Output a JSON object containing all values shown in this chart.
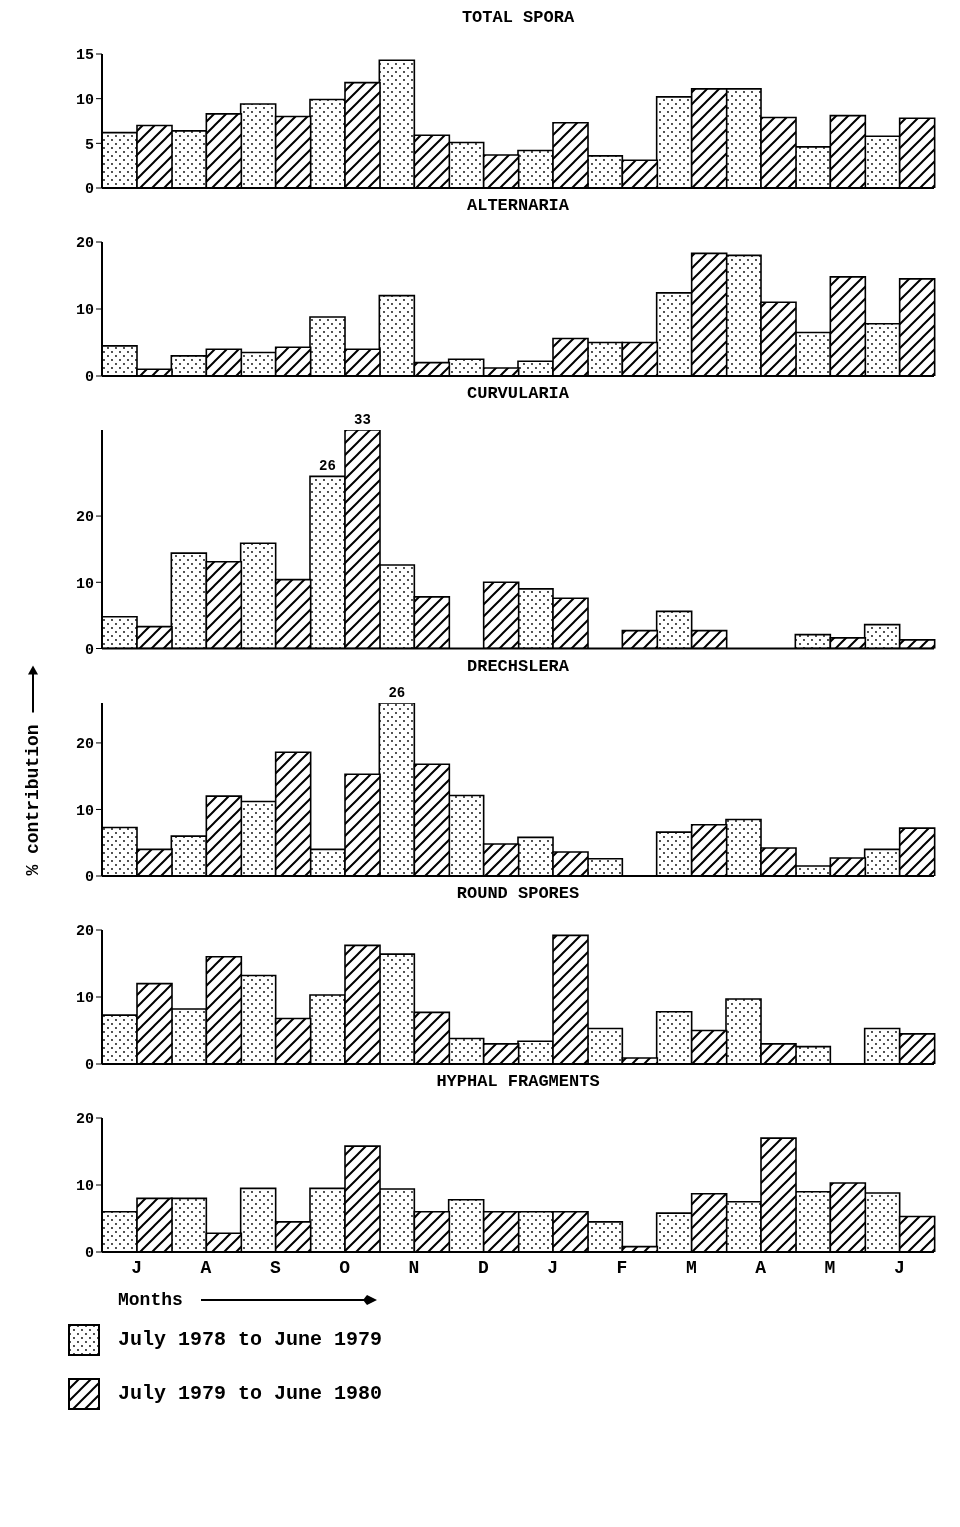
{
  "chart_data": [
    {
      "type": "bar",
      "title": "TOTAL SPORA",
      "categories": [
        null,
        null,
        null,
        null,
        null,
        null,
        null,
        null,
        null,
        null,
        null,
        null
      ],
      "ylim": [
        0,
        15
      ],
      "yticks": [
        0,
        5,
        10,
        15
      ],
      "tick_labels": "y",
      "series": [
        {
          "color": "#000000",
          "values": [
            6.2,
            6.4,
            9.4,
            9.9,
            14.3,
            5.1,
            4.2,
            3.6,
            10.2,
            11.1,
            4.6,
            5.8
          ]
        },
        {
          "color": "#000000",
          "values": [
            7.0,
            8.3,
            8.0,
            11.8,
            5.9,
            3.7,
            7.3,
            3.1,
            11.1,
            7.9,
            8.1,
            7.8
          ]
        }
      ]
    },
    {
      "type": "bar",
      "title": "ALTERNARIA",
      "categories": [
        null,
        null,
        null,
        null,
        null,
        null,
        null,
        null,
        null,
        null,
        null,
        null
      ],
      "ylim": [
        0,
        20
      ],
      "yticks": [
        0,
        10,
        20
      ],
      "tick_labels": "y",
      "series": [
        {
          "color": "#000000",
          "values": [
            4.5,
            3,
            3.5,
            8.8,
            12,
            2.5,
            2.2,
            5,
            12.4,
            18,
            6.5,
            7.8
          ]
        },
        {
          "color": "#000000",
          "values": [
            1,
            4,
            4.3,
            4,
            2,
            1.2,
            5.6,
            5,
            18.3,
            11,
            14.8,
            14.5
          ]
        }
      ]
    },
    {
      "type": "bar",
      "title": "CURVULARIA",
      "categories": [
        null,
        null,
        null,
        null,
        null,
        null,
        null,
        null,
        null,
        null,
        null,
        null
      ],
      "ylim": [
        0,
        33
      ],
      "yticks": [
        0,
        10,
        20
      ],
      "tick_labels": "y",
      "series": [
        {
          "color": "#000000",
          "values": [
            4.8,
            14.4,
            15.9,
            26,
            12.6,
            null,
            9,
            null,
            5.6,
            null,
            2.1,
            3.6
          ],
          "value_labels": [
            null,
            null,
            null,
            "26",
            null,
            null,
            null,
            null,
            null,
            null,
            null,
            null
          ]
        },
        {
          "color": "#000000",
          "values": [
            3.3,
            13.1,
            10.4,
            33,
            7.8,
            10,
            7.6,
            2.7,
            2.7,
            null,
            1.6,
            1.3
          ],
          "value_labels": [
            null,
            null,
            null,
            "33",
            null,
            null,
            null,
            null,
            null,
            null,
            null,
            null
          ]
        }
      ]
    },
    {
      "type": "bar",
      "title": "DRECHSLERA",
      "ylabel": "% contribution",
      "categories": [
        null,
        null,
        null,
        null,
        null,
        null,
        null,
        null,
        null,
        null,
        null,
        null
      ],
      "ylim": [
        0,
        26
      ],
      "yticks": [
        0,
        10,
        20
      ],
      "tick_labels": "y",
      "series": [
        {
          "color": "#000000",
          "values": [
            7.3,
            6,
            11.2,
            4,
            26,
            12.1,
            5.8,
            2.6,
            6.6,
            8.5,
            1.5,
            4
          ],
          "value_labels": [
            null,
            null,
            null,
            null,
            "26",
            null,
            null,
            null,
            null,
            null,
            null,
            null
          ]
        },
        {
          "color": "#000000",
          "values": [
            4,
            12,
            18.6,
            15.3,
            16.8,
            4.8,
            3.6,
            null,
            7.7,
            4.2,
            2.7,
            7.2
          ]
        }
      ]
    },
    {
      "type": "bar",
      "title": "ROUND SPORES",
      "categories": [
        null,
        null,
        null,
        null,
        null,
        null,
        null,
        null,
        null,
        null,
        null,
        null
      ],
      "ylim": [
        0,
        20
      ],
      "yticks": [
        0,
        10,
        20
      ],
      "tick_labels": "y",
      "series": [
        {
          "color": "#000000",
          "values": [
            7.3,
            8.2,
            13.2,
            10.3,
            16.4,
            3.8,
            3.4,
            5.3,
            7.8,
            9.7,
            2.6,
            5.3
          ]
        },
        {
          "color": "#000000",
          "values": [
            12,
            16,
            6.8,
            17.7,
            7.7,
            3,
            19.2,
            0.9,
            5,
            3,
            null,
            4.5
          ]
        }
      ]
    },
    {
      "type": "bar",
      "title": "HYPHAL FRAGMENTS",
      "xlabel": "Months",
      "categories": [
        "J",
        "A",
        "S",
        "O",
        "N",
        "D",
        "J",
        "F",
        "M",
        "A",
        "M",
        "J"
      ],
      "ylim": [
        0,
        20
      ],
      "yticks": [
        0,
        10,
        20
      ],
      "legend": "bottom",
      "series": [
        {
          "name": "July 1978 to June 1979",
          "color": "#000000",
          "values": [
            6,
            8,
            9.5,
            9.5,
            9.4,
            7.8,
            6,
            4.5,
            5.8,
            7.5,
            9,
            8.8
          ]
        },
        {
          "name": "July 1979 to June 1980",
          "color": "#000000",
          "values": [
            8,
            2.8,
            4.5,
            15.8,
            6,
            6,
            6,
            0.8,
            8.7,
            17,
            10.3,
            5.3
          ]
        }
      ]
    }
  ]
}
